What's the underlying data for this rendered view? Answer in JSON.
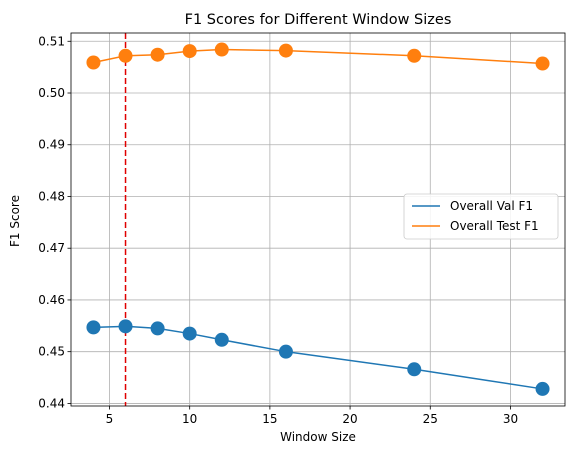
{
  "chart_data": {
    "type": "line",
    "title": "F1 Scores for Different Window Sizes",
    "xlabel": "Window Size",
    "ylabel": "F1 Score",
    "x": [
      4,
      6,
      8,
      10,
      12,
      16,
      24,
      32
    ],
    "series": [
      {
        "name": "Overall Val F1",
        "color": "#1f77b4",
        "values": [
          0.4547,
          0.4549,
          0.4545,
          0.4535,
          0.4523,
          0.45,
          0.4466,
          0.4428
        ]
      },
      {
        "name": "Overall Test F1",
        "color": "#ff7f0e",
        "values": [
          0.5059,
          0.5072,
          0.5074,
          0.5081,
          0.5084,
          0.5082,
          0.5072,
          0.5057
        ]
      }
    ],
    "xlim": [
      2.6,
      33.4
    ],
    "ylim": [
      0.4395,
      0.5116
    ],
    "xticks": [
      5,
      10,
      15,
      20,
      25,
      30
    ],
    "yticks": [
      0.44,
      0.45,
      0.46,
      0.47,
      0.48,
      0.49,
      0.5,
      0.51
    ],
    "ytick_labels": [
      "0.44",
      "0.45",
      "0.46",
      "0.47",
      "0.48",
      "0.49",
      "0.50",
      "0.51"
    ],
    "vline": {
      "x": 6,
      "color": "#e00000",
      "style": "dashed"
    },
    "grid": true,
    "legend_position": "center-right"
  }
}
